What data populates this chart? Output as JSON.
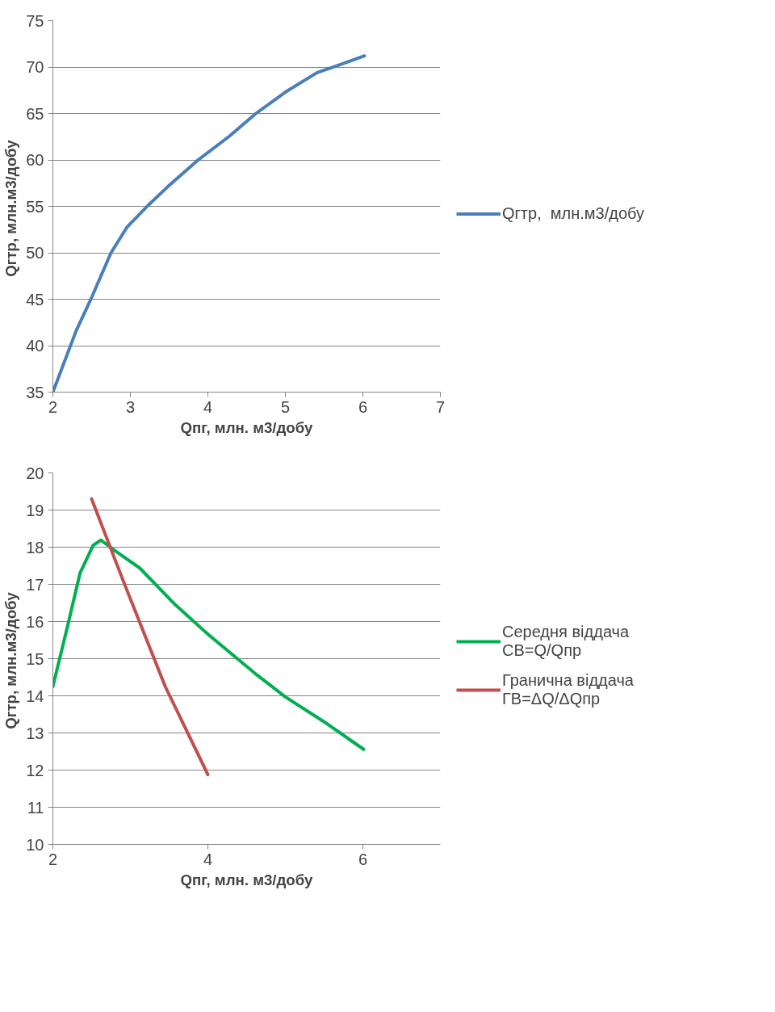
{
  "chart_data": [
    {
      "type": "line",
      "xlabel": "Qпг, млн. м3/добу",
      "ylabel": "Qгтр,  млн.м3/добу",
      "xlim": [
        2,
        7
      ],
      "xticks": [
        2,
        3,
        4,
        5,
        6,
        7
      ],
      "ylim": [
        35,
        75
      ],
      "yticks": [
        35,
        40,
        45,
        50,
        55,
        60,
        65,
        70,
        75
      ],
      "grid": "y",
      "legend": "right",
      "series": [
        {
          "name": "Qгтр,  млн.м3/добу",
          "color": "#4a7ebb",
          "x": [
            2,
            2.3,
            2.49,
            2.75,
            2.96,
            3.24,
            3.48,
            3.86,
            4.27,
            4.62,
            5.0,
            5.41,
            5.69,
            6.02
          ],
          "values": [
            35,
            41.6,
            45.0,
            50.0,
            52.8,
            55.2,
            57.1,
            59.9,
            62.5,
            65.0,
            67.3,
            69.4,
            70.2,
            71.2
          ]
        }
      ]
    },
    {
      "type": "line",
      "xlabel": "Qпг, млн. м3/добу",
      "ylabel": "Qгтр,  млн.м3/добу",
      "xlim": [
        2,
        7
      ],
      "xticks": [
        2,
        4,
        6
      ],
      "ylim": [
        10,
        20
      ],
      "yticks": [
        10,
        11,
        12,
        13,
        14,
        15,
        16,
        17,
        18,
        19,
        20
      ],
      "grid": "y",
      "legend": "right",
      "series": [
        {
          "name": "Середня віддача СВ=Q/Qпр",
          "color": "#00b050",
          "x": [
            2,
            2.19,
            2.35,
            2.52,
            2.62,
            2.82,
            3.12,
            3.58,
            4.01,
            4.64,
            5.0,
            5.5,
            6.01
          ],
          "values": [
            14.25,
            15.88,
            17.3,
            18.05,
            18.19,
            17.88,
            17.44,
            16.45,
            15.64,
            14.55,
            13.97,
            13.3,
            12.56
          ]
        },
        {
          "name": "Гранична віддача ГВ=ΔQ/ΔQпр",
          "color": "#c0504d",
          "x": [
            2.5,
            2.92,
            3.45,
            4.0
          ],
          "values": [
            19.3,
            17.03,
            14.25,
            11.88
          ]
        }
      ]
    }
  ]
}
